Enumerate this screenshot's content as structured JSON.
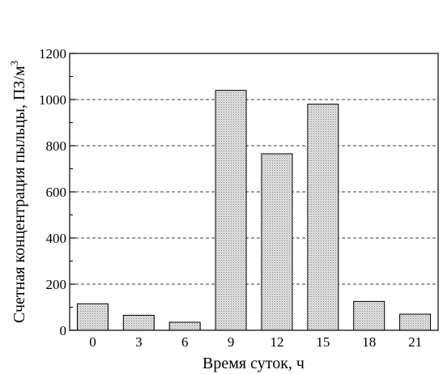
{
  "chart_data": {
    "type": "bar",
    "categories": [
      "0",
      "3",
      "6",
      "9",
      "12",
      "15",
      "18",
      "21"
    ],
    "values": [
      115,
      65,
      35,
      1040,
      765,
      980,
      125,
      70
    ],
    "xlabel": "Время суток, ч",
    "ylabel": "Счетная концентрация пыльцы, ПЗ/м",
    "ylabel_superscript": "3",
    "ylim": [
      0,
      1200
    ],
    "yticks": [
      "0",
      "200",
      "400",
      "600",
      "800",
      "1000",
      "1200"
    ],
    "ytick_values": [
      0,
      200,
      400,
      600,
      800,
      1000,
      1200
    ],
    "grid": "horizontal dashed",
    "bar_fill": "dotted gray",
    "colors": {
      "bar_fill": "#d9d9d9",
      "bar_dots": "#777777",
      "axis": "#000000"
    }
  }
}
